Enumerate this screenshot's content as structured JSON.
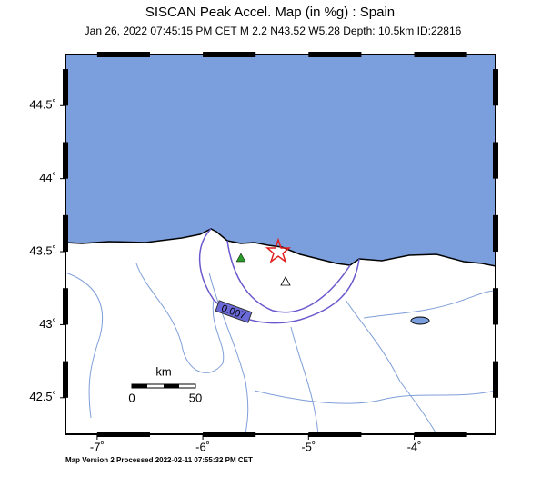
{
  "map": {
    "title": "SISCAN Peak Accel. Map (in %g) : Spain",
    "subtitle": "Jan 26, 2022 07:45:15 PM CET   M 2.2   N43.52 W5.28   Depth: 10.5km   ID:22816",
    "xlim": [
      -7.3,
      -3.23
    ],
    "ylim": [
      42.25,
      44.85
    ],
    "xticks": [
      {
        "value": -7,
        "label": "-7˚"
      },
      {
        "value": -6,
        "label": "-6˚"
      },
      {
        "value": -5,
        "label": "-5˚"
      },
      {
        "value": -4,
        "label": "-4˚"
      }
    ],
    "yticks": [
      {
        "value": 42.5,
        "label": "42.5˚"
      },
      {
        "value": 43,
        "label": "43˚"
      },
      {
        "value": 43.5,
        "label": "43.5˚"
      },
      {
        "value": 44,
        "label": "44˚"
      },
      {
        "value": 44.5,
        "label": "44.5˚"
      }
    ],
    "contour_label": "0.007",
    "scale_unit": "km",
    "scale_labels": [
      "0",
      "50"
    ],
    "footer": "Map Version 2 Processed 2022-02-11 07:55:32 PM CET"
  }
}
